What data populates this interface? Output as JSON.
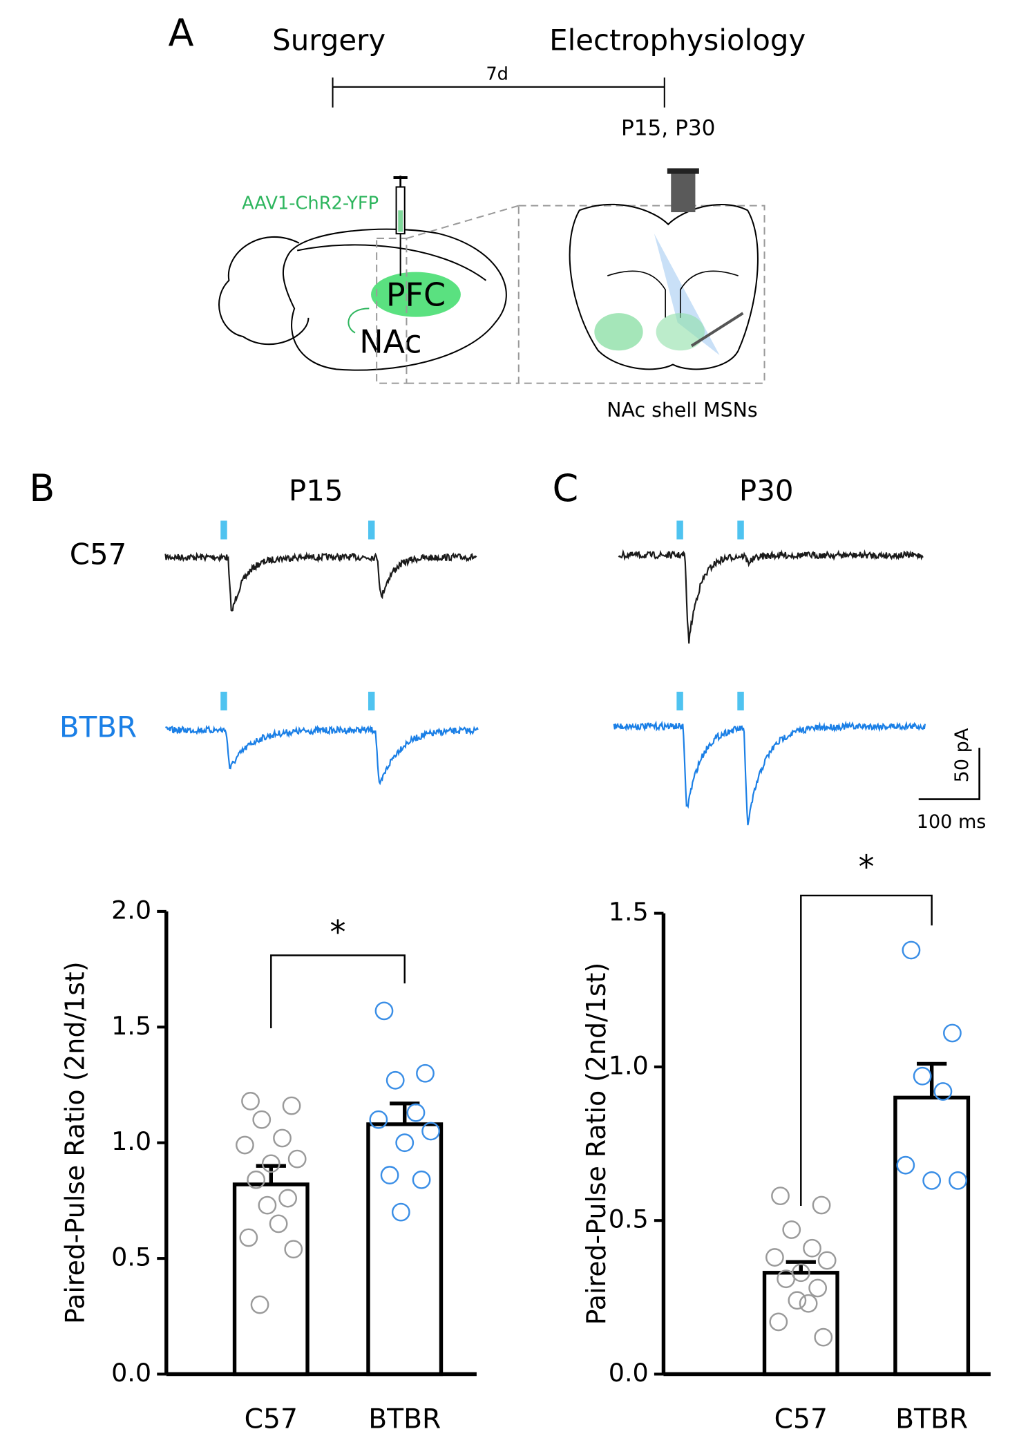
{
  "panel_a": {
    "label": "A",
    "timeline_start": "Surgery",
    "timeline_end": "Electrophysiology",
    "interval": "7d",
    "ages": "P15, P30",
    "virus": "AAV1-ChR2-YFP",
    "injection_site": "PFC",
    "target": "NAc",
    "recorded_cells": "NAc shell MSNs"
  },
  "panel_b": {
    "label": "B",
    "title": "P15",
    "strain_1": "C57",
    "strain_2": "BTBR"
  },
  "panel_c": {
    "label": "C",
    "title": "P30",
    "scale_y": "50 pA",
    "scale_x": "100 ms"
  },
  "chart_data": [
    {
      "type": "bar",
      "ylabel": "Paired-Pulse Ratio (2nd/1st)",
      "categories": [
        "C57",
        "BTBR"
      ],
      "values": [
        0.82,
        1.08
      ],
      "errors": [
        0.08,
        0.09
      ],
      "bar_color": "#ffffff",
      "edge_color": "#000000",
      "points": [
        [
          1.18,
          1.16,
          1.1,
          1.02,
          0.99,
          0.93,
          0.91,
          0.84,
          0.76,
          0.73,
          0.65,
          0.59,
          0.54,
          0.3
        ],
        [
          1.57,
          1.3,
          1.27,
          1.13,
          1.1,
          1.05,
          1.0,
          0.86,
          0.84,
          0.7
        ]
      ],
      "point_colors": [
        "#9a9a9a",
        "#3a8ee6"
      ],
      "annotation": "*",
      "ylim": [
        0,
        2
      ],
      "yticks": [
        {
          "value": 0,
          "label": "0.0"
        },
        0.5,
        {
          "value": 1,
          "label": "1.0"
        },
        1.5,
        {
          "value": 2,
          "label": "2.0"
        }
      ]
    },
    {
      "type": "bar",
      "ylabel": "Paired-Pulse Ratio (2nd/1st)",
      "categories": [
        "C57",
        "BTBR"
      ],
      "values": [
        0.33,
        0.9
      ],
      "errors": [
        0.035,
        0.11
      ],
      "bar_color": "#ffffff",
      "edge_color": "#000000",
      "points": [
        [
          0.58,
          0.55,
          0.47,
          0.41,
          0.38,
          0.37,
          0.33,
          0.31,
          0.28,
          0.24,
          0.23,
          0.17,
          0.12
        ],
        [
          1.38,
          1.11,
          0.97,
          0.92,
          0.68,
          0.63,
          0.63
        ]
      ],
      "point_colors": [
        "#9a9a9a",
        "#3a8ee6"
      ],
      "annotation": "*",
      "ylim": [
        0,
        1.5
      ],
      "yticks": [
        {
          "value": 0,
          "label": "0.0"
        },
        0.5,
        {
          "value": 1,
          "label": "1.0"
        },
        1.5
      ]
    }
  ]
}
